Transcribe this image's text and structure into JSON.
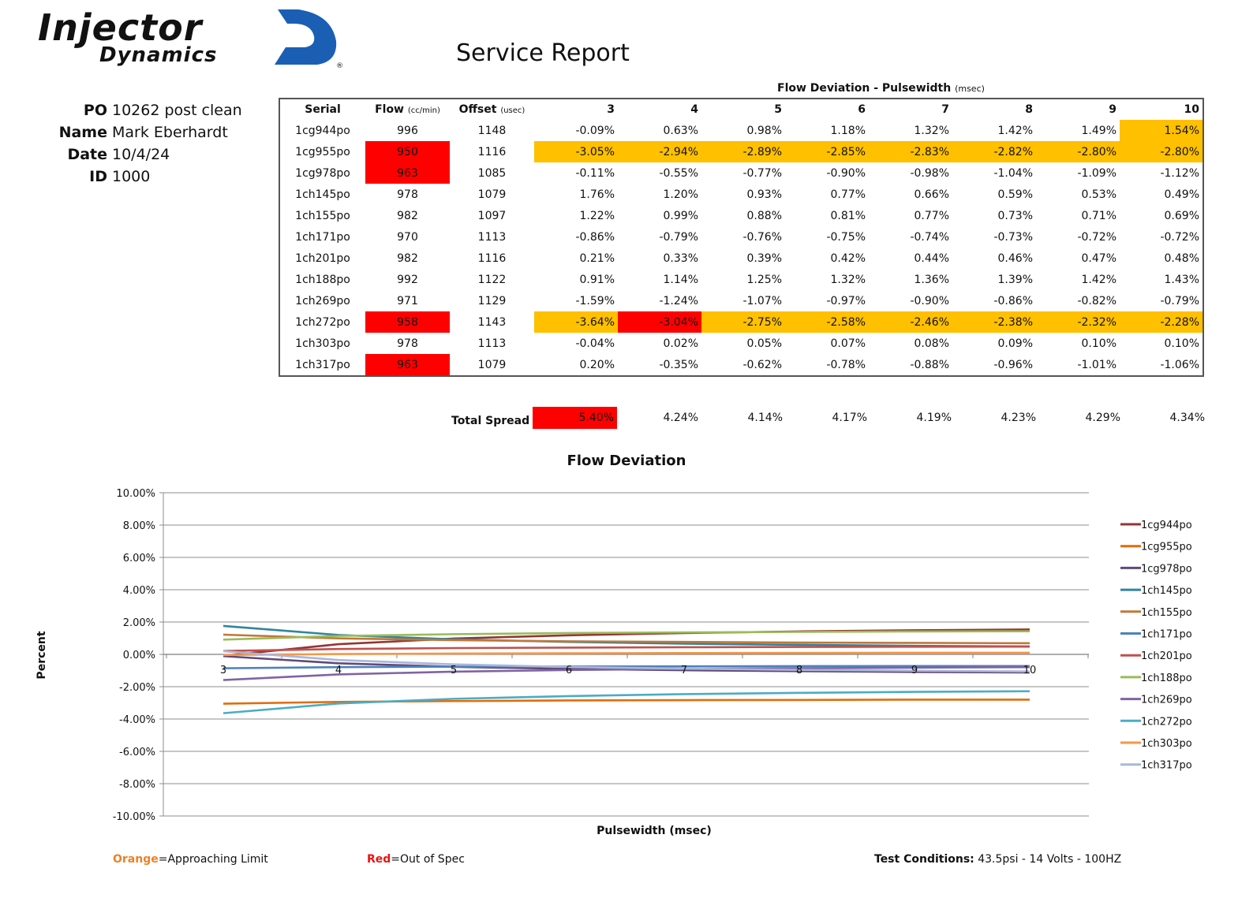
{
  "brand": {
    "line1": "Injector",
    "line2": "Dynamics",
    "registered": "®"
  },
  "report_title": "Service Report",
  "info": [
    {
      "label": "PO",
      "value": "10262 post clean"
    },
    {
      "label": "Name",
      "value": "Mark Eberhardt"
    },
    {
      "label": "Date",
      "value": "10/4/24"
    },
    {
      "label": "ID",
      "value": "1000"
    }
  ],
  "table": {
    "group_header": "Flow Deviation - Pulsewidth",
    "group_header_unit": "(msec)",
    "headers": {
      "serial": "Serial",
      "flow": "Flow",
      "flow_unit": "(cc/min)",
      "offset": "Offset",
      "offset_unit": "(usec)",
      "pulsewidths": [
        "3",
        "4",
        "5",
        "6",
        "7",
        "8",
        "9",
        "10"
      ]
    },
    "rows": [
      {
        "serial": "1cg944po",
        "flow": "996",
        "offset": "1148",
        "dev": [
          "-0.09%",
          "0.63%",
          "0.98%",
          "1.18%",
          "1.32%",
          "1.42%",
          "1.49%",
          "1.54%"
        ]
      },
      {
        "serial": "1cg955po",
        "flow": "950",
        "offset": "1116",
        "dev": [
          "-3.05%",
          "-2.94%",
          "-2.89%",
          "-2.85%",
          "-2.83%",
          "-2.82%",
          "-2.80%",
          "-2.80%"
        ]
      },
      {
        "serial": "1cg978po",
        "flow": "963",
        "offset": "1085",
        "dev": [
          "-0.11%",
          "-0.55%",
          "-0.77%",
          "-0.90%",
          "-0.98%",
          "-1.04%",
          "-1.09%",
          "-1.12%"
        ]
      },
      {
        "serial": "1ch145po",
        "flow": "978",
        "offset": "1079",
        "dev": [
          "1.76%",
          "1.20%",
          "0.93%",
          "0.77%",
          "0.66%",
          "0.59%",
          "0.53%",
          "0.49%"
        ]
      },
      {
        "serial": "1ch155po",
        "flow": "982",
        "offset": "1097",
        "dev": [
          "1.22%",
          "0.99%",
          "0.88%",
          "0.81%",
          "0.77%",
          "0.73%",
          "0.71%",
          "0.69%"
        ]
      },
      {
        "serial": "1ch171po",
        "flow": "970",
        "offset": "1113",
        "dev": [
          "-0.86%",
          "-0.79%",
          "-0.76%",
          "-0.75%",
          "-0.74%",
          "-0.73%",
          "-0.72%",
          "-0.72%"
        ]
      },
      {
        "serial": "1ch201po",
        "flow": "982",
        "offset": "1116",
        "dev": [
          "0.21%",
          "0.33%",
          "0.39%",
          "0.42%",
          "0.44%",
          "0.46%",
          "0.47%",
          "0.48%"
        ]
      },
      {
        "serial": "1ch188po",
        "flow": "992",
        "offset": "1122",
        "dev": [
          "0.91%",
          "1.14%",
          "1.25%",
          "1.32%",
          "1.36%",
          "1.39%",
          "1.42%",
          "1.43%"
        ]
      },
      {
        "serial": "1ch269po",
        "flow": "971",
        "offset": "1129",
        "dev": [
          "-1.59%",
          "-1.24%",
          "-1.07%",
          "-0.97%",
          "-0.90%",
          "-0.86%",
          "-0.82%",
          "-0.79%"
        ]
      },
      {
        "serial": "1ch272po",
        "flow": "958",
        "offset": "1143",
        "dev": [
          "-3.64%",
          "-3.04%",
          "-2.75%",
          "-2.58%",
          "-2.46%",
          "-2.38%",
          "-2.32%",
          "-2.28%"
        ]
      },
      {
        "serial": "1ch303po",
        "flow": "978",
        "offset": "1113",
        "dev": [
          "-0.04%",
          "0.02%",
          "0.05%",
          "0.07%",
          "0.08%",
          "0.09%",
          "0.10%",
          "0.10%"
        ]
      },
      {
        "serial": "1ch317po",
        "flow": "963",
        "offset": "1079",
        "dev": [
          "0.20%",
          "-0.35%",
          "-0.62%",
          "-0.78%",
          "-0.88%",
          "-0.96%",
          "-1.01%",
          "-1.06%"
        ]
      }
    ],
    "highlights": {
      "flow_red": [
        1,
        2,
        9,
        11
      ],
      "dev_orange": [
        [
          0,
          7
        ],
        [
          1,
          0
        ],
        [
          1,
          1
        ],
        [
          1,
          2
        ],
        [
          1,
          3
        ],
        [
          1,
          4
        ],
        [
          1,
          5
        ],
        [
          1,
          6
        ],
        [
          1,
          7
        ],
        [
          9,
          0
        ],
        [
          9,
          2
        ],
        [
          9,
          3
        ],
        [
          9,
          4
        ],
        [
          9,
          5
        ],
        [
          9,
          6
        ],
        [
          9,
          7
        ]
      ],
      "dev_red": [
        [
          9,
          1
        ]
      ]
    },
    "total_spread_label": "Total Spread",
    "total_spread": [
      "5.40%",
      "4.24%",
      "4.14%",
      "4.17%",
      "4.19%",
      "4.23%",
      "4.29%",
      "4.34%"
    ],
    "total_spread_red": [
      0
    ]
  },
  "colors": {
    "orange": "#ffc000",
    "red": "#ff0000"
  },
  "chart_data": {
    "type": "line",
    "title": "Flow Deviation",
    "xlabel": "Pulsewidth (msec)",
    "ylabel": "Percent",
    "categories": [
      "3",
      "4",
      "5",
      "6",
      "7",
      "8",
      "9",
      "10"
    ],
    "ylim": [
      -10,
      10
    ],
    "yticks": [
      "10.00%",
      "8.00%",
      "6.00%",
      "4.00%",
      "2.00%",
      "0.00%",
      "-2.00%",
      "-4.00%",
      "-6.00%",
      "-8.00%",
      "-10.00%"
    ],
    "legend_position": "right",
    "series": [
      {
        "name": "1cg944po",
        "color": "#943634",
        "values": [
          -0.09,
          0.63,
          0.98,
          1.18,
          1.32,
          1.42,
          1.49,
          1.54
        ]
      },
      {
        "name": "1cg955po",
        "color": "#e36c09",
        "values": [
          -3.05,
          -2.94,
          -2.89,
          -2.85,
          -2.83,
          -2.82,
          -2.8,
          -2.8
        ]
      },
      {
        "name": "1cg978po",
        "color": "#5f497a",
        "values": [
          -0.11,
          -0.55,
          -0.77,
          -0.9,
          -0.98,
          -1.04,
          -1.09,
          -1.12
        ]
      },
      {
        "name": "1ch145po",
        "color": "#31859c",
        "values": [
          1.76,
          1.2,
          0.93,
          0.77,
          0.66,
          0.59,
          0.53,
          0.49
        ]
      },
      {
        "name": "1ch155po",
        "color": "#c0783a",
        "values": [
          1.22,
          0.99,
          0.88,
          0.81,
          0.77,
          0.73,
          0.71,
          0.69
        ]
      },
      {
        "name": "1ch171po",
        "color": "#4f81bd",
        "values": [
          -0.86,
          -0.79,
          -0.76,
          -0.75,
          -0.74,
          -0.73,
          -0.72,
          -0.72
        ]
      },
      {
        "name": "1ch201po",
        "color": "#c0504d",
        "values": [
          0.21,
          0.33,
          0.39,
          0.42,
          0.44,
          0.46,
          0.47,
          0.48
        ]
      },
      {
        "name": "1ch188po",
        "color": "#9bbb59",
        "values": [
          0.91,
          1.14,
          1.25,
          1.32,
          1.36,
          1.39,
          1.42,
          1.43
        ]
      },
      {
        "name": "1ch269po",
        "color": "#8064a2",
        "values": [
          -1.59,
          -1.24,
          -1.07,
          -0.97,
          -0.9,
          -0.86,
          -0.82,
          -0.79
        ]
      },
      {
        "name": "1ch272po",
        "color": "#4bacc6",
        "values": [
          -3.64,
          -3.04,
          -2.75,
          -2.58,
          -2.46,
          -2.38,
          -2.32,
          -2.28
        ]
      },
      {
        "name": "1ch303po",
        "color": "#f79646",
        "values": [
          -0.04,
          0.02,
          0.05,
          0.07,
          0.08,
          0.09,
          0.1,
          0.1
        ]
      },
      {
        "name": "1ch317po",
        "color": "#aab7d8",
        "values": [
          0.2,
          -0.35,
          -0.62,
          -0.78,
          -0.88,
          -0.96,
          -1.01,
          -1.06
        ]
      }
    ]
  },
  "footer": {
    "orange_word": "Orange",
    "orange_text": "=Approaching Limit",
    "red_word": "Red",
    "red_text": "=Out of Spec",
    "test_label": "Test Conditions:",
    "test_value": " 43.5psi - 14 Volts - 100HZ"
  }
}
